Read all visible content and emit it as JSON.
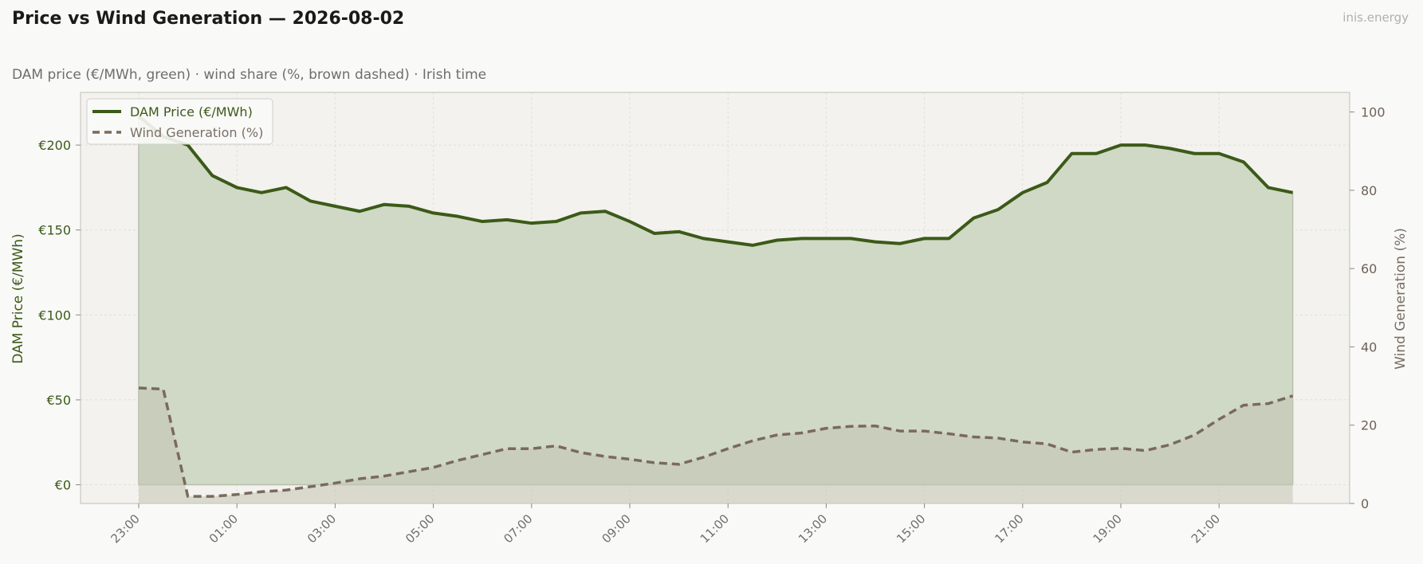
{
  "header": {
    "title": "Price vs Wind Generation — 2026-08-02",
    "subtitle": "DAM price (€/MWh, green)  ·  wind share (%, brown dashed)  ·  Irish time",
    "brand": "inis.energy"
  },
  "chart_data": {
    "type": "line",
    "title": "Price vs Wind Generation — 2026-08-02",
    "ylabel_left": "DAM Price (€/MWh)",
    "ylabel_right": "Wind Generation (%)",
    "ylim_left": [
      -11,
      231
    ],
    "ylim_right": [
      0,
      105
    ],
    "yticks_left": [
      0,
      50,
      100,
      150,
      200
    ],
    "yticks_left_labels": [
      "€0",
      "€50",
      "€100",
      "€150",
      "€200"
    ],
    "yticks_right": [
      0,
      20,
      40,
      60,
      80,
      100
    ],
    "yticks_right_labels": [
      "0",
      "20",
      "40",
      "60",
      "80",
      "100"
    ],
    "xticks_labels": [
      "23:00",
      "01:00",
      "03:00",
      "05:00",
      "07:00",
      "09:00",
      "11:00",
      "13:00",
      "15:00",
      "17:00",
      "19:00",
      "21:00"
    ],
    "x_start_label": "23:00",
    "x_step_minutes": 30,
    "grid": true,
    "legend_position": "top-left",
    "colors": {
      "price": "#3b5a18",
      "price_fill": "#d0d9c5",
      "wind": "#7a6a5c",
      "wind_fill": "#c2c4b4",
      "plot_bg": "#f3f2ee",
      "grid": "#e0dfd9"
    },
    "series": [
      {
        "name": "DAM Price (€/MWh)",
        "axis": "left",
        "values": [
          217,
          205,
          200,
          182,
          175,
          172,
          175,
          167,
          164,
          161,
          165,
          164,
          160,
          158,
          155,
          156,
          154,
          155,
          160,
          161,
          155,
          148,
          149,
          145,
          143,
          141,
          144,
          145,
          145,
          145,
          143,
          142,
          145,
          145,
          157,
          162,
          172,
          178,
          195,
          195,
          200,
          200,
          198,
          195,
          195,
          190,
          175,
          172
        ]
      },
      {
        "name": "Wind Generation (%)",
        "axis": "right",
        "values": [
          29.5,
          29.2,
          1.8,
          1.8,
          2.3,
          3.0,
          3.4,
          4.3,
          5.2,
          6.3,
          7.0,
          8.1,
          9.2,
          11.0,
          12.5,
          14.0,
          14.0,
          14.7,
          13.0,
          12.0,
          11.3,
          10.4,
          10.0,
          11.8,
          14.0,
          16.0,
          17.5,
          18.0,
          19.2,
          19.7,
          19.8,
          18.5,
          18.5,
          17.8,
          17.0,
          16.7,
          15.7,
          15.2,
          13.1,
          13.8,
          14.1,
          13.5,
          15.0,
          17.5,
          21.5,
          25.1,
          25.5,
          27.5
        ]
      }
    ]
  }
}
